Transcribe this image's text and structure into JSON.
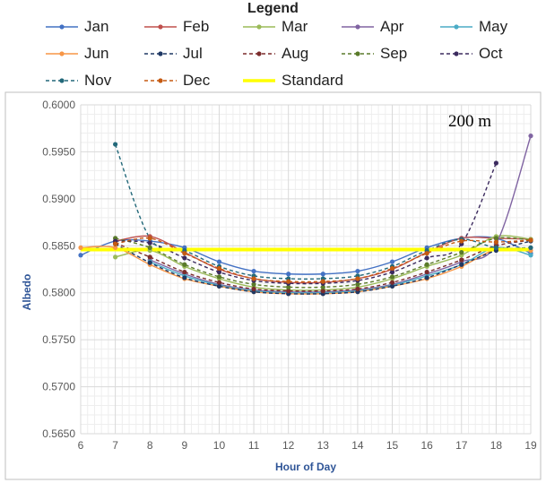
{
  "chart_data": {
    "type": "line",
    "legend_title": "Legend",
    "annotation": "200 m",
    "xlabel": "Hour of Day",
    "ylabel": "Albedo",
    "xlim": [
      6,
      19
    ],
    "ylim": [
      0.565,
      0.6
    ],
    "x_ticks": [
      "6",
      "7",
      "8",
      "9",
      "10",
      "11",
      "12",
      "13",
      "14",
      "15",
      "16",
      "17",
      "18",
      "19"
    ],
    "y_ticks": [
      "0.5650",
      "0.5700",
      "0.5750",
      "0.5800",
      "0.5850",
      "0.5900",
      "0.5950",
      "0.6000"
    ],
    "grid": true,
    "legend_placement": "top",
    "x": [
      6,
      7,
      8,
      9,
      10,
      11,
      12,
      13,
      14,
      15,
      16,
      17,
      18,
      19
    ],
    "series": [
      {
        "name": "Jan",
        "color": "#4472c4",
        "dash": false,
        "values": [
          0.584,
          0.5855,
          0.5855,
          0.5848,
          0.5833,
          0.5823,
          0.582,
          0.582,
          0.5823,
          0.5833,
          0.5848,
          0.5858,
          0.5858,
          0.5842
        ]
      },
      {
        "name": "Feb",
        "color": "#c0504d",
        "dash": false,
        "values": [
          null,
          0.5855,
          0.586,
          0.5843,
          0.5825,
          0.5815,
          0.5811,
          0.5811,
          0.5815,
          0.5825,
          0.5843,
          0.5858,
          0.5858,
          0.5857
        ]
      },
      {
        "name": "Mar",
        "color": "#9bbb59",
        "dash": false,
        "values": [
          null,
          0.5838,
          0.5845,
          0.5828,
          0.5815,
          0.5806,
          0.5803,
          0.5803,
          0.5806,
          0.5815,
          0.5828,
          0.584,
          0.586,
          0.5857
        ]
      },
      {
        "name": "Apr",
        "color": "#8064a2",
        "dash": false,
        "values": [
          null,
          null,
          0.5835,
          0.582,
          0.5809,
          0.5803,
          0.5801,
          0.5801,
          0.5803,
          0.5809,
          0.582,
          0.5833,
          0.5852,
          0.5967
        ]
      },
      {
        "name": "May",
        "color": "#4bacc6",
        "dash": false,
        "values": [
          null,
          null,
          0.5833,
          0.5818,
          0.5808,
          0.5802,
          0.58,
          0.58,
          0.5802,
          0.5808,
          0.5818,
          0.583,
          0.5848,
          0.584
        ]
      },
      {
        "name": "Jun",
        "color": "#f79646",
        "dash": false,
        "values": [
          0.5848,
          0.5848,
          0.583,
          0.5815,
          0.5807,
          0.5801,
          0.5799,
          0.5799,
          0.5801,
          0.5807,
          0.5815,
          0.5828,
          0.5846,
          0.5845
        ]
      },
      {
        "name": "Jul",
        "color": "#1f3864",
        "dash": true,
        "values": [
          null,
          0.5852,
          0.5832,
          0.5816,
          0.5807,
          0.5801,
          0.5799,
          0.5799,
          0.5801,
          0.5807,
          0.5816,
          0.583,
          0.5845,
          0.5855
        ]
      },
      {
        "name": "Aug",
        "color": "#7b2c2c",
        "dash": true,
        "values": [
          null,
          0.5853,
          0.5838,
          0.5822,
          0.5811,
          0.5804,
          0.5802,
          0.5802,
          0.5804,
          0.5811,
          0.5822,
          0.5835,
          0.585,
          0.5856
        ]
      },
      {
        "name": "Sep",
        "color": "#5a7a2a",
        "dash": true,
        "values": [
          null,
          0.5858,
          0.5848,
          0.583,
          0.5817,
          0.5809,
          0.5806,
          0.5806,
          0.5809,
          0.5817,
          0.583,
          0.5843,
          0.5858,
          0.5856
        ]
      },
      {
        "name": "Oct",
        "color": "#3b2a5e",
        "dash": true,
        "values": [
          null,
          0.5855,
          0.5853,
          0.5837,
          0.5822,
          0.5813,
          0.581,
          0.581,
          0.5813,
          0.5822,
          0.5837,
          0.5852,
          0.5938,
          null
        ]
      },
      {
        "name": "Nov",
        "color": "#23697a",
        "dash": true,
        "values": [
          null,
          0.5958,
          0.5858,
          0.5845,
          0.5828,
          0.5818,
          0.5815,
          0.5815,
          0.5818,
          0.5828,
          0.5845,
          0.5857,
          0.5848,
          0.5848
        ]
      },
      {
        "name": "Dec",
        "color": "#c55a11",
        "dash": true,
        "values": [
          null,
          0.5852,
          0.5858,
          0.5842,
          0.5826,
          0.5815,
          0.5812,
          0.5812,
          0.5815,
          0.5826,
          0.5842,
          0.5855,
          0.5854,
          0.5856
        ]
      },
      {
        "name": "Standard",
        "color": "#ffff00",
        "dash": false,
        "thick": true,
        "values": [
          0.5846,
          0.5846,
          0.5846,
          0.5846,
          0.5846,
          0.5846,
          0.5846,
          0.5846,
          0.5846,
          0.5846,
          0.5846,
          0.5846,
          0.5846,
          0.5846
        ]
      }
    ]
  }
}
